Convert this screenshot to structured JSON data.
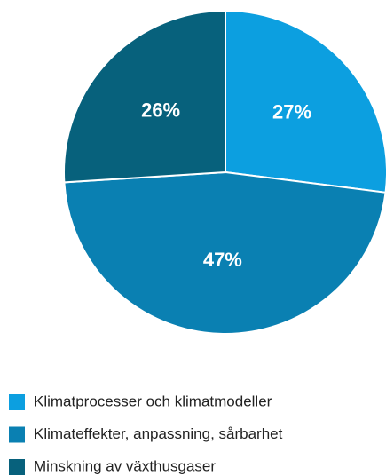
{
  "chart_data": {
    "type": "pie",
    "categories": [
      "Klimatprocesser och klimatmodeller",
      "Klimateffekter, anpassning, sårbarhet",
      "Minskning av växthusgaser"
    ],
    "values": [
      27,
      47,
      26
    ],
    "value_labels": [
      "27%",
      "47%",
      "26%"
    ],
    "colors": [
      "#0c9fe0",
      "#0a80b2",
      "#07617c"
    ]
  }
}
